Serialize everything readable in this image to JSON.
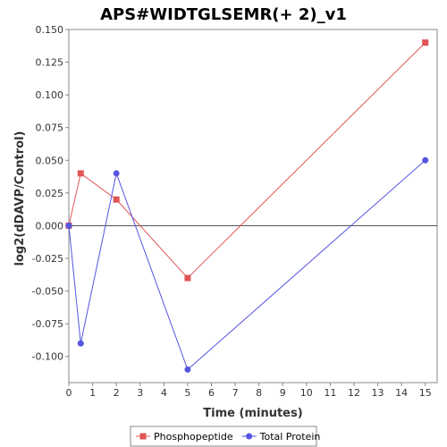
{
  "chart_data": {
    "type": "line",
    "title": "APS#WIDTGLSEMR(+ 2)_v1",
    "xlabel": "Time (minutes)",
    "ylabel": "log2(dDAVP/Control)",
    "xlim": [
      0,
      15.5
    ],
    "ylim": [
      -0.12,
      0.15
    ],
    "xticks": [
      0,
      1,
      2,
      3,
      4,
      5,
      6,
      7,
      8,
      9,
      10,
      11,
      12,
      13,
      14,
      15
    ],
    "yticks": [
      -0.1,
      -0.075,
      -0.05,
      -0.025,
      0,
      0.025,
      0.05,
      0.075,
      0.1,
      0.125,
      0.15
    ],
    "ytick_labels": [
      "-0.100",
      "-0.075",
      "-0.050",
      "-0.025",
      "0.000",
      "0.025",
      "0.050",
      "0.075",
      "0.100",
      "0.125",
      "0.150"
    ],
    "grid": false,
    "legend": "bottom",
    "series": [
      {
        "name": "Phosphopeptide",
        "marker": "square",
        "color": "#e05555",
        "x": [
          0,
          0.5,
          2,
          5,
          15
        ],
        "y": [
          0.0,
          0.04,
          0.02,
          -0.04,
          0.14
        ]
      },
      {
        "name": "Total Protein",
        "marker": "circle",
        "color": "#5555e0",
        "x": [
          0,
          0.5,
          2,
          5,
          15
        ],
        "y": [
          0.0,
          -0.09,
          0.04,
          -0.11,
          0.05
        ]
      }
    ]
  }
}
